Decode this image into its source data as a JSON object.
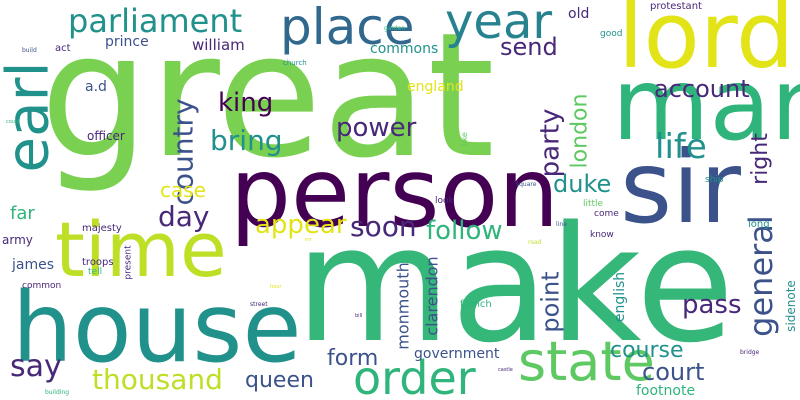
{
  "palette": {
    "green_bright": "#7ad151",
    "green": "#5ec962",
    "teal": "#21918c",
    "teal_green": "#2fb47c",
    "sea": "#35b779",
    "blue": "#31688e",
    "indigo": "#3b528b",
    "purple": "#440154",
    "violet": "#482878",
    "yellow": "#e2e418",
    "lime": "#bddf26",
    "cyan": "#26828e"
  },
  "words": [
    "great",
    "make",
    "person",
    "house",
    "time",
    "sir",
    "lord",
    "man",
    "earl",
    "place",
    "year",
    "state",
    "order",
    "parliament",
    "general",
    "king",
    "country",
    "bring",
    "life",
    "power",
    "account",
    "send",
    "day",
    "duke",
    "soon",
    "follow",
    "appear",
    "case",
    "court",
    "course",
    "party",
    "london",
    "right",
    "point",
    "pass",
    "say",
    "thousand",
    "queen",
    "form",
    "government",
    "footnote",
    "clarendon",
    "monmouth",
    "english",
    "sidenote",
    "william",
    "prince",
    "commons",
    "england",
    "a.d",
    "officer",
    "act",
    "far",
    "army",
    "james",
    "majesty",
    "troops",
    "tell",
    "common",
    "present",
    "french",
    "long",
    "know",
    "come",
    "little",
    "like",
    "look",
    "ship",
    "old",
    "protestant",
    "good",
    "church",
    "garden",
    "build",
    "square",
    "line",
    "road",
    "street",
    "bill",
    "bridge",
    "castle",
    "building",
    "could",
    "mr",
    "hour"
  ]
}
